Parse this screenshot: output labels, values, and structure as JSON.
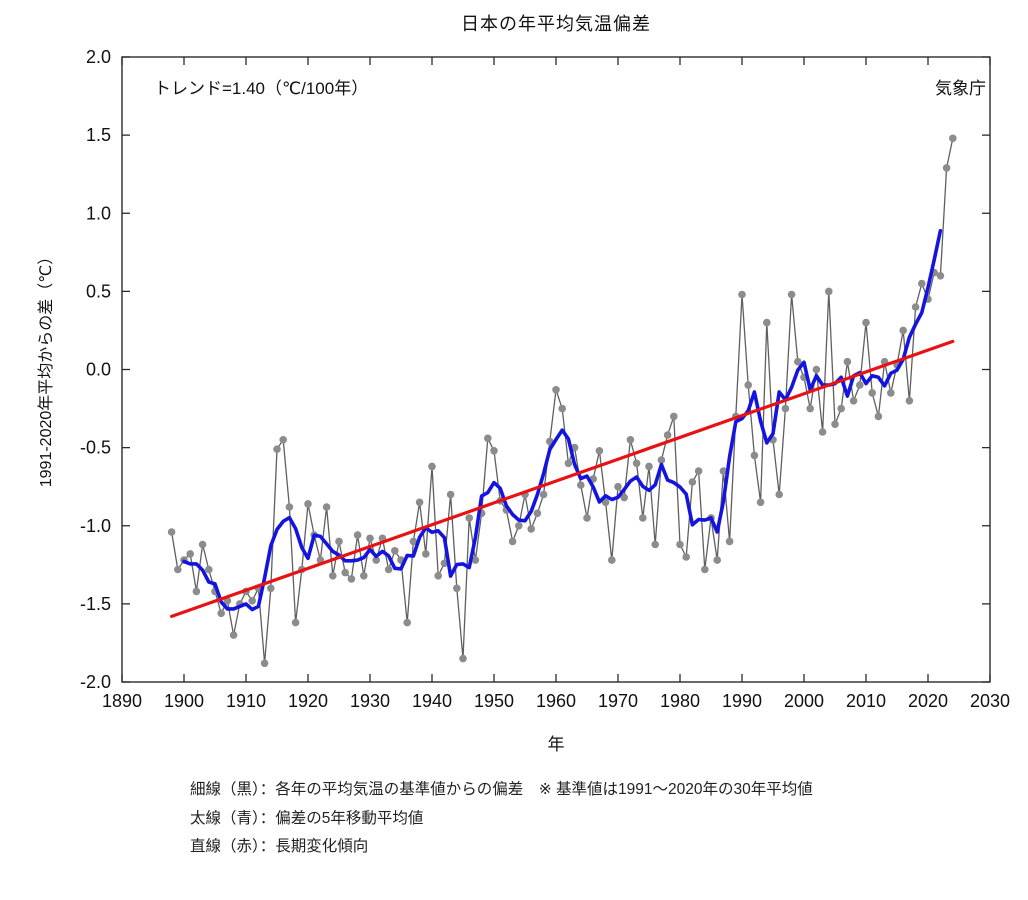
{
  "chart": {
    "title": "日本の年平均気温偏差",
    "agency": "気象庁",
    "trend_label": "トレンド=1.40（℃/100年）",
    "y_axis_label": "1991-2020年平均からの差（℃）",
    "x_axis_label": "年",
    "colors": {
      "annual_line": "#5f5f5f",
      "annual_dot": "#8c8c8c",
      "moving_average": "#1414e0",
      "trend": "#e81212",
      "frame": "#2b2b2b",
      "text": "#111111",
      "background": "#ffffff"
    }
  },
  "legend": {
    "lines": [
      "細線（黒）：各年の平均気温の基準値からの偏差　※ 基準値は1991～2020年の30年平均値",
      "太線（青）：偏差の5年移動平均値",
      "直線（赤）：長期変化傾向"
    ]
  },
  "chart_data": {
    "type": "line",
    "title": "日本の年平均気温偏差",
    "xlabel": "年",
    "ylabel": "1991-2020年平均からの差（℃）",
    "xlim": [
      1890,
      2030
    ],
    "ylim": [
      -2.0,
      2.0
    ],
    "x_ticks": [
      1890,
      1900,
      1910,
      1920,
      1930,
      1940,
      1950,
      1960,
      1970,
      1980,
      1990,
      2000,
      2010,
      2020,
      2030
    ],
    "y_ticks": [
      -2.0,
      -1.5,
      -1.0,
      -0.5,
      0.0,
      0.5,
      1.0,
      1.5,
      2.0
    ],
    "grid": false,
    "legend_position": "below",
    "start_year": 1898,
    "series": [
      {
        "name": "各年の平均気温の基準値からの偏差（細線・黒）",
        "type": "annual",
        "values": [
          -1.04,
          -1.28,
          -1.22,
          -1.18,
          -1.42,
          -1.12,
          -1.28,
          -1.42,
          -1.56,
          -1.48,
          -1.7,
          -1.5,
          -1.42,
          -1.48,
          -1.4,
          -1.88,
          -1.4,
          -0.51,
          -0.45,
          -0.88,
          -1.62,
          -1.28,
          -0.86,
          -1.06,
          -1.22,
          -0.88,
          -1.32,
          -1.1,
          -1.3,
          -1.34,
          -1.06,
          -1.32,
          -1.08,
          -1.22,
          -1.08,
          -1.28,
          -1.16,
          -1.22,
          -1.62,
          -1.1,
          -0.85,
          -1.18,
          -0.62,
          -1.32,
          -1.24,
          -0.8,
          -1.4,
          -1.85,
          -0.95,
          -1.22,
          -0.92,
          -0.44,
          -0.52,
          -0.84,
          -0.9,
          -1.1,
          -1.0,
          -0.8,
          -1.02,
          -0.92,
          -0.8,
          -0.46,
          -0.13,
          -0.25,
          -0.6,
          -0.5,
          -0.74,
          -0.95,
          -0.7,
          -0.52,
          -0.85,
          -1.22,
          -0.75,
          -0.82,
          -0.45,
          -0.6,
          -0.95,
          -0.62,
          -1.12,
          -0.58,
          -0.42,
          -0.3,
          -1.12,
          -1.2,
          -0.72,
          -0.65,
          -1.28,
          -0.95,
          -1.22,
          -0.65,
          -1.1,
          -0.3,
          0.48,
          -0.1,
          -0.55,
          -0.85,
          0.3,
          -0.45,
          -0.8,
          -0.25,
          0.48,
          0.05,
          -0.05,
          -0.25,
          0.0,
          -0.4,
          0.5,
          -0.35,
          -0.25,
          0.05,
          -0.2,
          -0.1,
          0.3,
          -0.15,
          -0.3,
          0.05,
          -0.15,
          0.03,
          0.25,
          -0.2,
          0.4,
          0.55,
          0.45,
          0.62,
          0.6,
          1.29,
          1.48
        ]
      },
      {
        "name": "偏差の5年移動平均値（太線・青）",
        "type": "moving_average",
        "window": 5,
        "derived_from": "annual"
      },
      {
        "name": "長期変化傾向（直線・赤）",
        "type": "trend",
        "slope_c_per_100yr": 1.4,
        "points": [
          {
            "year": 1898,
            "value": -1.58
          },
          {
            "year": 2024,
            "value": 0.18
          }
        ]
      }
    ]
  }
}
